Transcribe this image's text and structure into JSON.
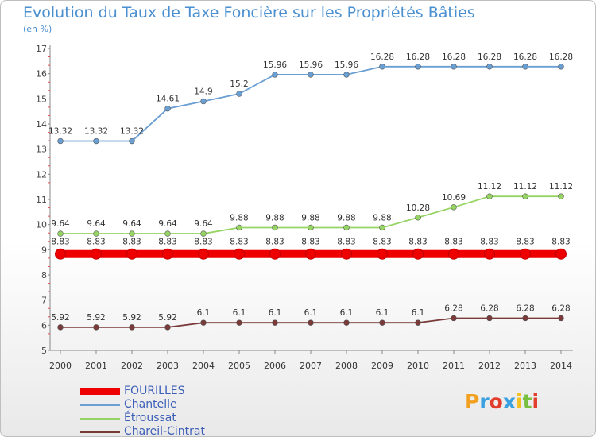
{
  "chart_data": {
    "type": "line",
    "title": "Evolution du Taux de Taxe Foncière sur les Propriétés Bâties",
    "subtitle": "(en %)",
    "x": [
      "2000",
      "2001",
      "2002",
      "2003",
      "2004",
      "2005",
      "2006",
      "2007",
      "2008",
      "2009",
      "2010",
      "2011",
      "2012",
      "2013",
      "2014"
    ],
    "ylim": [
      5,
      17
    ],
    "yticks": [
      5,
      6,
      7,
      8,
      9,
      10,
      11,
      12,
      13,
      14,
      15,
      16,
      17
    ],
    "grid": false,
    "legend_placement": "bottom-left",
    "series": [
      {
        "name": "FOURILLES",
        "color": "#ee0000",
        "values": [
          8.83,
          8.83,
          8.83,
          8.83,
          8.83,
          8.83,
          8.83,
          8.83,
          8.83,
          8.83,
          8.83,
          8.83,
          8.83,
          8.83,
          8.83
        ],
        "labels": [
          "8.83",
          "8.83",
          "8.83",
          "8.83",
          "8.83",
          "8.83",
          "8.83",
          "8.83",
          "8.83",
          "8.83",
          "8.83",
          "8.83",
          "8.83",
          "8.83",
          "8.83"
        ]
      },
      {
        "name": "Chantelle",
        "color": "#6a9fd4",
        "values": [
          13.32,
          13.32,
          13.32,
          14.61,
          14.9,
          15.2,
          15.96,
          15.96,
          15.96,
          16.28,
          16.28,
          16.28,
          16.28,
          16.28,
          16.28
        ],
        "labels": [
          "13.32",
          "13.32",
          "13.32",
          "14.61",
          "14.9",
          "15.2",
          "15.96",
          "15.96",
          "15.96",
          "16.28",
          "16.28",
          "16.28",
          "16.28",
          "16.28",
          "16.28"
        ]
      },
      {
        "name": "Étroussat",
        "color": "#96d464",
        "values": [
          9.64,
          9.64,
          9.64,
          9.64,
          9.64,
          9.88,
          9.88,
          9.88,
          9.88,
          9.88,
          10.28,
          10.69,
          11.12,
          11.12,
          11.12
        ],
        "labels": [
          "9.64",
          "9.64",
          "9.64",
          "9.64",
          "9.64",
          "9.88",
          "9.88",
          "9.88",
          "9.88",
          "9.88",
          "10.28",
          "10.69",
          "11.12",
          "11.12",
          "11.12"
        ]
      },
      {
        "name": "Chareil-Cintrat",
        "color": "#7a3a3a",
        "values": [
          5.92,
          5.92,
          5.92,
          5.92,
          6.1,
          6.1,
          6.1,
          6.1,
          6.1,
          6.1,
          6.1,
          6.28,
          6.28,
          6.28,
          6.28
        ],
        "labels": [
          "5.92",
          "5.92",
          "5.92",
          "5.92",
          "6.1",
          "6.1",
          "6.1",
          "6.1",
          "6.1",
          "6.1",
          "6.1",
          "6.28",
          "6.28",
          "6.28",
          "6.28"
        ]
      }
    ]
  },
  "logo": {
    "letters": [
      "P",
      "r",
      "o",
      "x",
      "i",
      "t",
      "i"
    ],
    "colors": [
      "#f2a020",
      "#3aa0e0",
      "#e23c2c",
      "#3aa0e0",
      "#f2c020",
      "#7ac040",
      "#e23c2c"
    ]
  }
}
